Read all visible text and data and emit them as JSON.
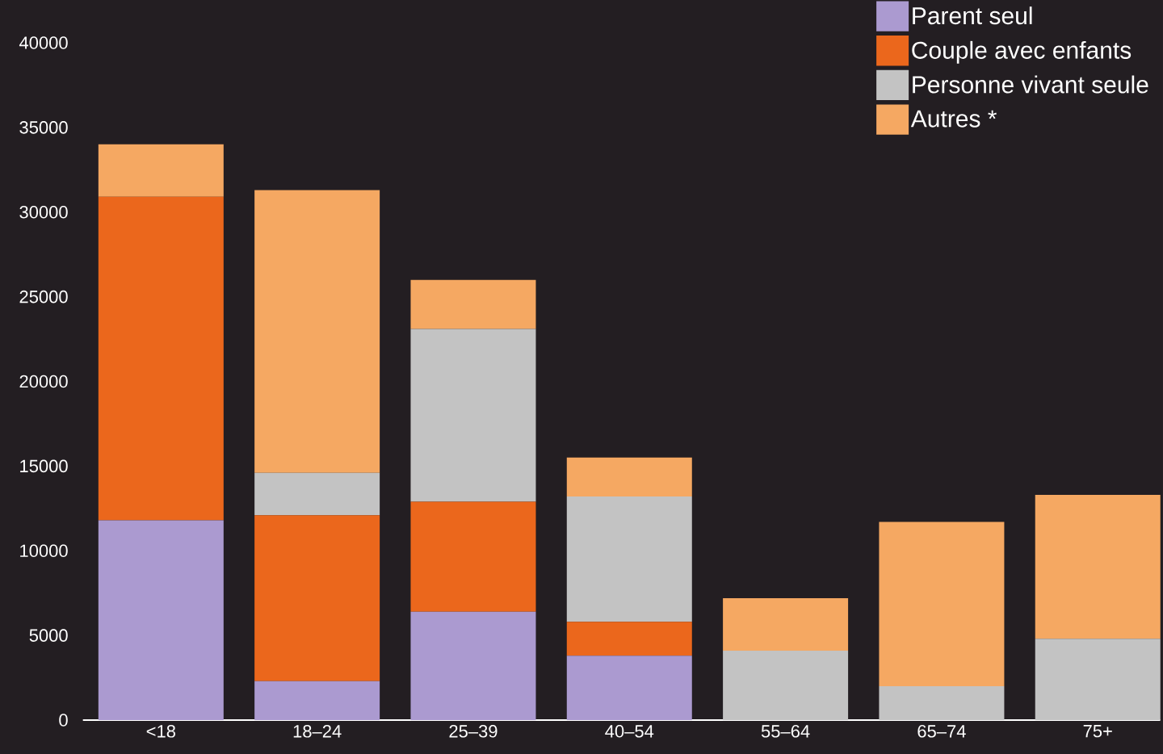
{
  "chart_data": {
    "type": "bar",
    "stacked": true,
    "categories": [
      "<18",
      "18–24",
      "25–39",
      "40–54",
      "55–64",
      "65–74",
      "75+"
    ],
    "series": [
      {
        "name": "Parent seul",
        "color": "#ab9ad0",
        "values": [
          11800,
          2300,
          6400,
          3800,
          0,
          0,
          0
        ]
      },
      {
        "name": "Couple avec enfants",
        "color": "#eb671c",
        "values": [
          19100,
          9800,
          6500,
          2000,
          0,
          0,
          0
        ]
      },
      {
        "name": "Personne vivant seule",
        "color": "#c3c3c3",
        "values": [
          0,
          2500,
          10200,
          7400,
          4100,
          2000,
          4800
        ]
      },
      {
        "name": "Autres *",
        "color": "#f5a862",
        "values": [
          3100,
          16700,
          2900,
          2300,
          3100,
          9700,
          8500
        ]
      }
    ],
    "ylim": [
      0,
      40000
    ],
    "yticks": [
      0,
      5000,
      10000,
      15000,
      20000,
      25000,
      30000,
      35000,
      40000
    ],
    "legend": "top right",
    "grid": false
  }
}
